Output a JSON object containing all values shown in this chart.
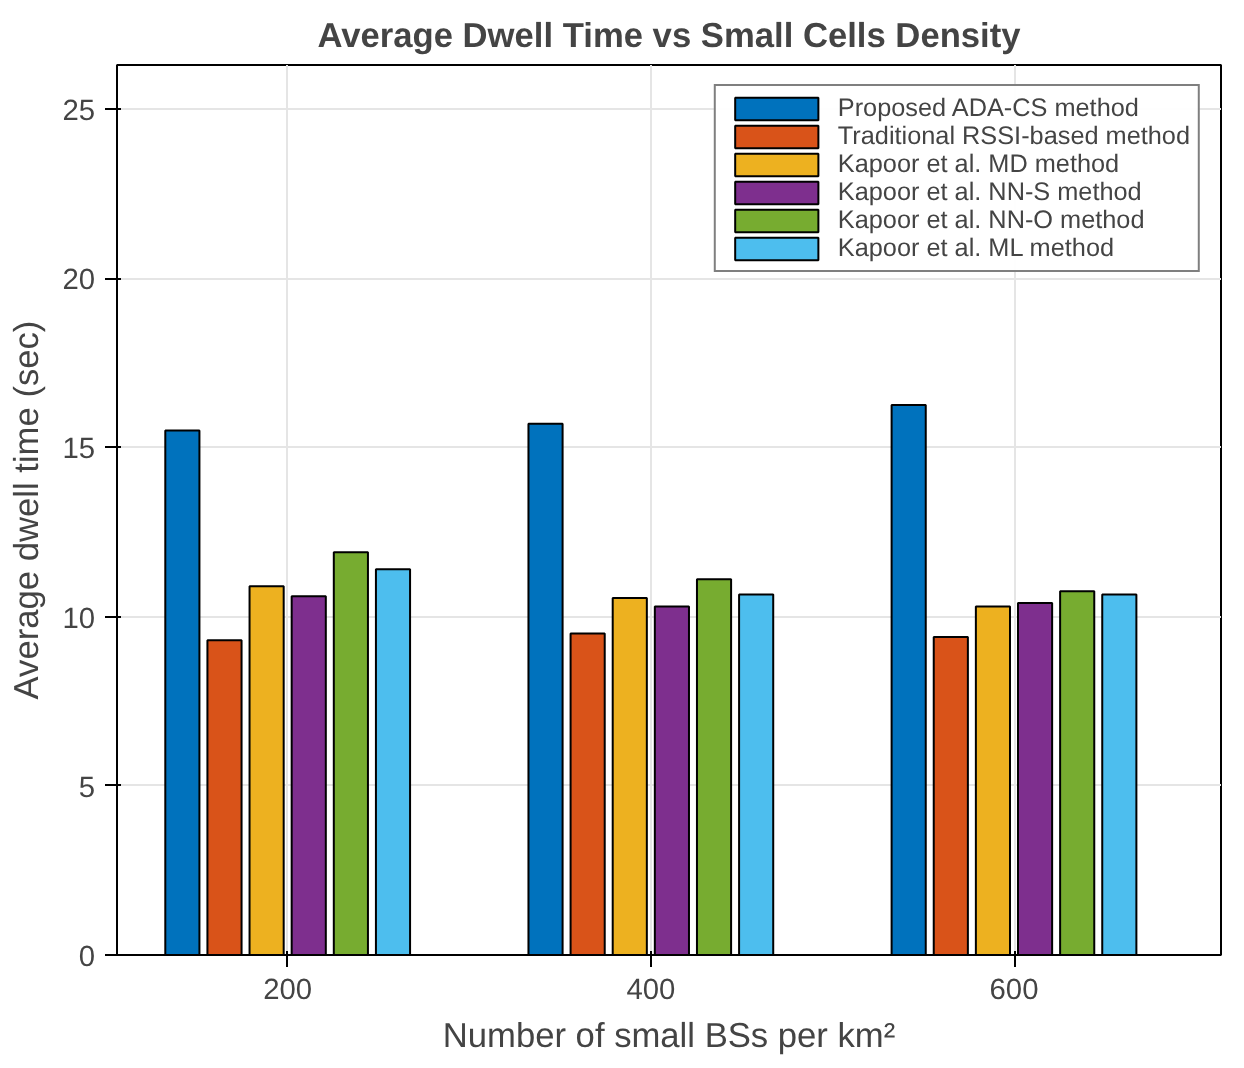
{
  "chart_data": {
    "type": "bar",
    "title": "Average Dwell Time vs Small Cells Density",
    "xlabel": "Number of small BSs per km²",
    "ylabel": "Average dwell time (sec)",
    "categories": [
      "200",
      "400",
      "600"
    ],
    "series": [
      {
        "name": "Proposed ADA-CS method",
        "color": "#0072bd",
        "values": [
          15.5,
          15.7,
          16.25
        ]
      },
      {
        "name": "Traditional RSSI-based method",
        "color": "#d95319",
        "values": [
          9.3,
          9.5,
          9.4
        ]
      },
      {
        "name": "Kapoor et al. MD method",
        "color": "#edb120",
        "values": [
          10.9,
          10.55,
          10.3
        ]
      },
      {
        "name": "Kapoor et al. NN-S method",
        "color": "#7e2f8e",
        "values": [
          10.6,
          10.3,
          10.4
        ]
      },
      {
        "name": "Kapoor et al. NN-O method",
        "color": "#77ac30",
        "values": [
          11.9,
          11.1,
          10.75
        ]
      },
      {
        "name": "Kapoor et al. ML method",
        "color": "#4dbeee",
        "values": [
          11.4,
          10.65,
          10.65
        ]
      }
    ],
    "ylim": [
      0,
      26.3
    ],
    "yticks": [
      0,
      5,
      10,
      15,
      20,
      25
    ],
    "grid": true,
    "legend": "top right"
  }
}
